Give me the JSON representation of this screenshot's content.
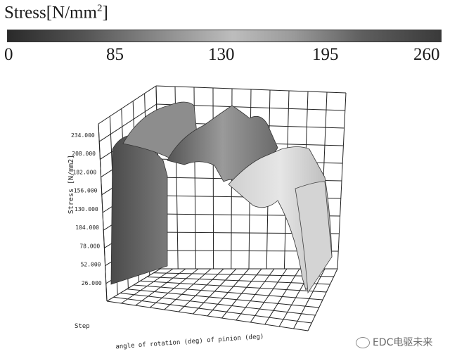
{
  "chart_data": {
    "type": "surface-3d",
    "title": "",
    "colorbar": {
      "title": "Stress[N/mm",
      "title_sup": "2",
      "title_tail": "]",
      "ticks": [
        "0",
        "85",
        "130",
        "195",
        "260"
      ]
    },
    "zlabel": "Stress [N/mm2]",
    "xlabel": "angle of rotation (deg) of pinion (deg)",
    "ylabel": "Step",
    "zticks": [
      "26.000",
      "52.000",
      "78.000",
      "104.000",
      "130.000",
      "156.000",
      "182.000",
      "208.000",
      "234.000"
    ],
    "zlim": [
      0,
      260
    ],
    "grid": true
  },
  "watermark": "EDC电驱未来"
}
